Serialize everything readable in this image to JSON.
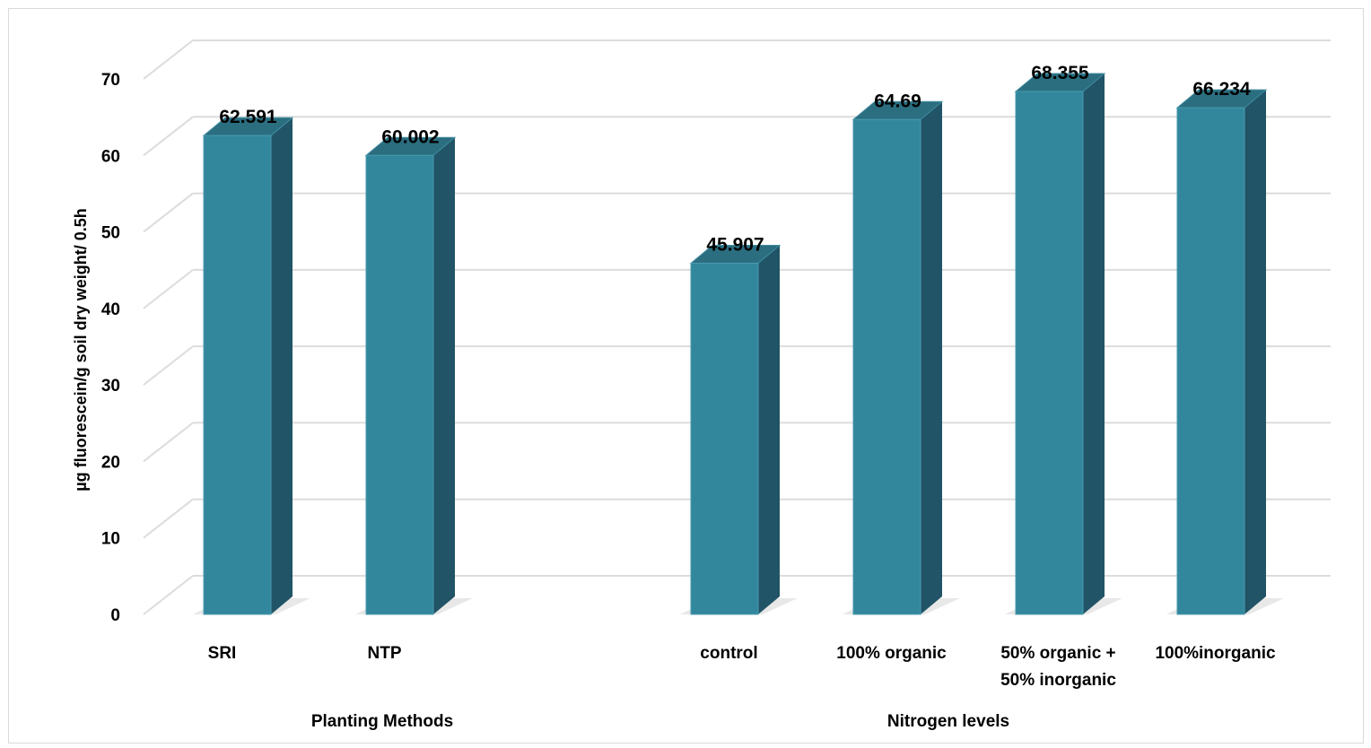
{
  "chart_data": {
    "type": "bar",
    "style": "3d-column",
    "ylabel": "µg fluorescein/g soil dry weight/ 0.5h",
    "ylim": [
      0,
      70
    ],
    "yticks": [
      0,
      10,
      20,
      30,
      40,
      50,
      60,
      70
    ],
    "grid": true,
    "colors": {
      "front": "#32879c",
      "side": "#215466",
      "top": "#2b6e80",
      "grid": "#dcdcdc"
    },
    "groups": [
      {
        "label": "Planting Methods",
        "start": 0,
        "end": 1
      },
      {
        "label": "Nitrogen levels",
        "start": 2,
        "end": 5
      }
    ],
    "categories": [
      [
        "SRI"
      ],
      [
        "NTP"
      ],
      [
        "control"
      ],
      [
        "100% organic"
      ],
      [
        "50% organic +",
        "50% inorganic"
      ],
      [
        "100%inorganic"
      ]
    ],
    "values": [
      62.591,
      60.002,
      45.907,
      64.69,
      68.355,
      66.234
    ],
    "data_labels": [
      "62.591",
      "60.002",
      "45.907",
      "64.69",
      "68.355",
      "66.234"
    ]
  }
}
